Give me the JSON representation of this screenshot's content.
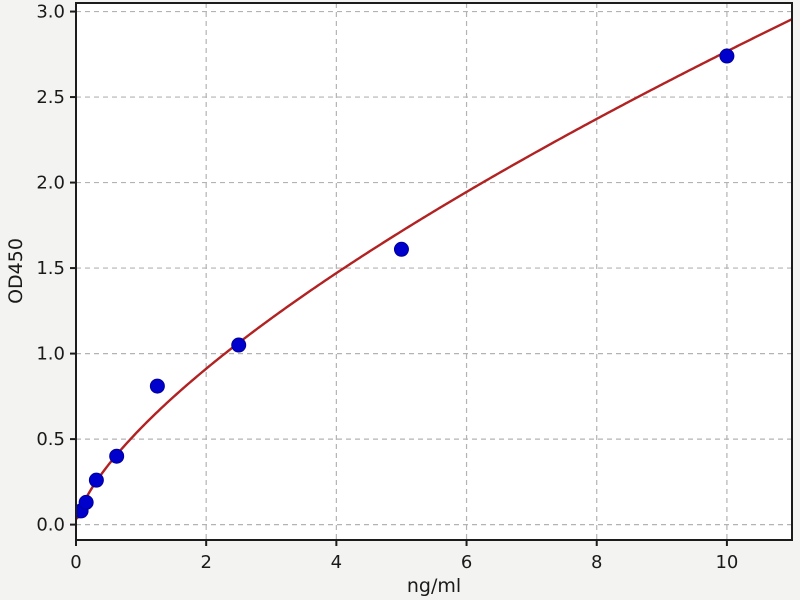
{
  "chart_data": {
    "type": "scatter",
    "title": "",
    "xlabel": "ng/ml",
    "ylabel": "OD450",
    "xlim": [
      0,
      11
    ],
    "ylim": [
      -0.09,
      3.05
    ],
    "x_ticks": [
      0,
      2,
      4,
      6,
      8,
      10
    ],
    "x_tick_labels": [
      "0",
      "2",
      "4",
      "6",
      "8",
      "10"
    ],
    "y_ticks": [
      0.0,
      0.5,
      1.0,
      1.5,
      2.0,
      2.5,
      3.0
    ],
    "y_tick_labels": [
      "0.0",
      "0.5",
      "1.0",
      "1.5",
      "2.0",
      "2.5",
      "3.0"
    ],
    "grid": true,
    "grid_style": "dashed",
    "legend": "none",
    "series": [
      {
        "name": "standard-points",
        "kind": "scatter",
        "x": [
          0.078,
          0.156,
          0.313,
          0.625,
          1.25,
          2.5,
          5,
          10
        ],
        "y": [
          0.08,
          0.13,
          0.26,
          0.4,
          0.81,
          1.05,
          1.61,
          2.74
        ],
        "marker": "circle",
        "color": "#0000cd"
      },
      {
        "name": "fit-curve",
        "kind": "line",
        "fit": {
          "model": "power",
          "a": 0.565,
          "b": 0.69,
          "x_start": 0.02,
          "x_end": 11
        },
        "color": "#b22222"
      }
    ]
  },
  "colors": {
    "figure_background": "#f3f3f1",
    "axes_background": "#ffffff",
    "grid": "#b3b3b3",
    "spine": "#1c1c1c",
    "tick_text": "#1a1a1a",
    "marker_fill": "#0000cd",
    "marker_edge": "#00009a",
    "curve": "#b22222"
  }
}
